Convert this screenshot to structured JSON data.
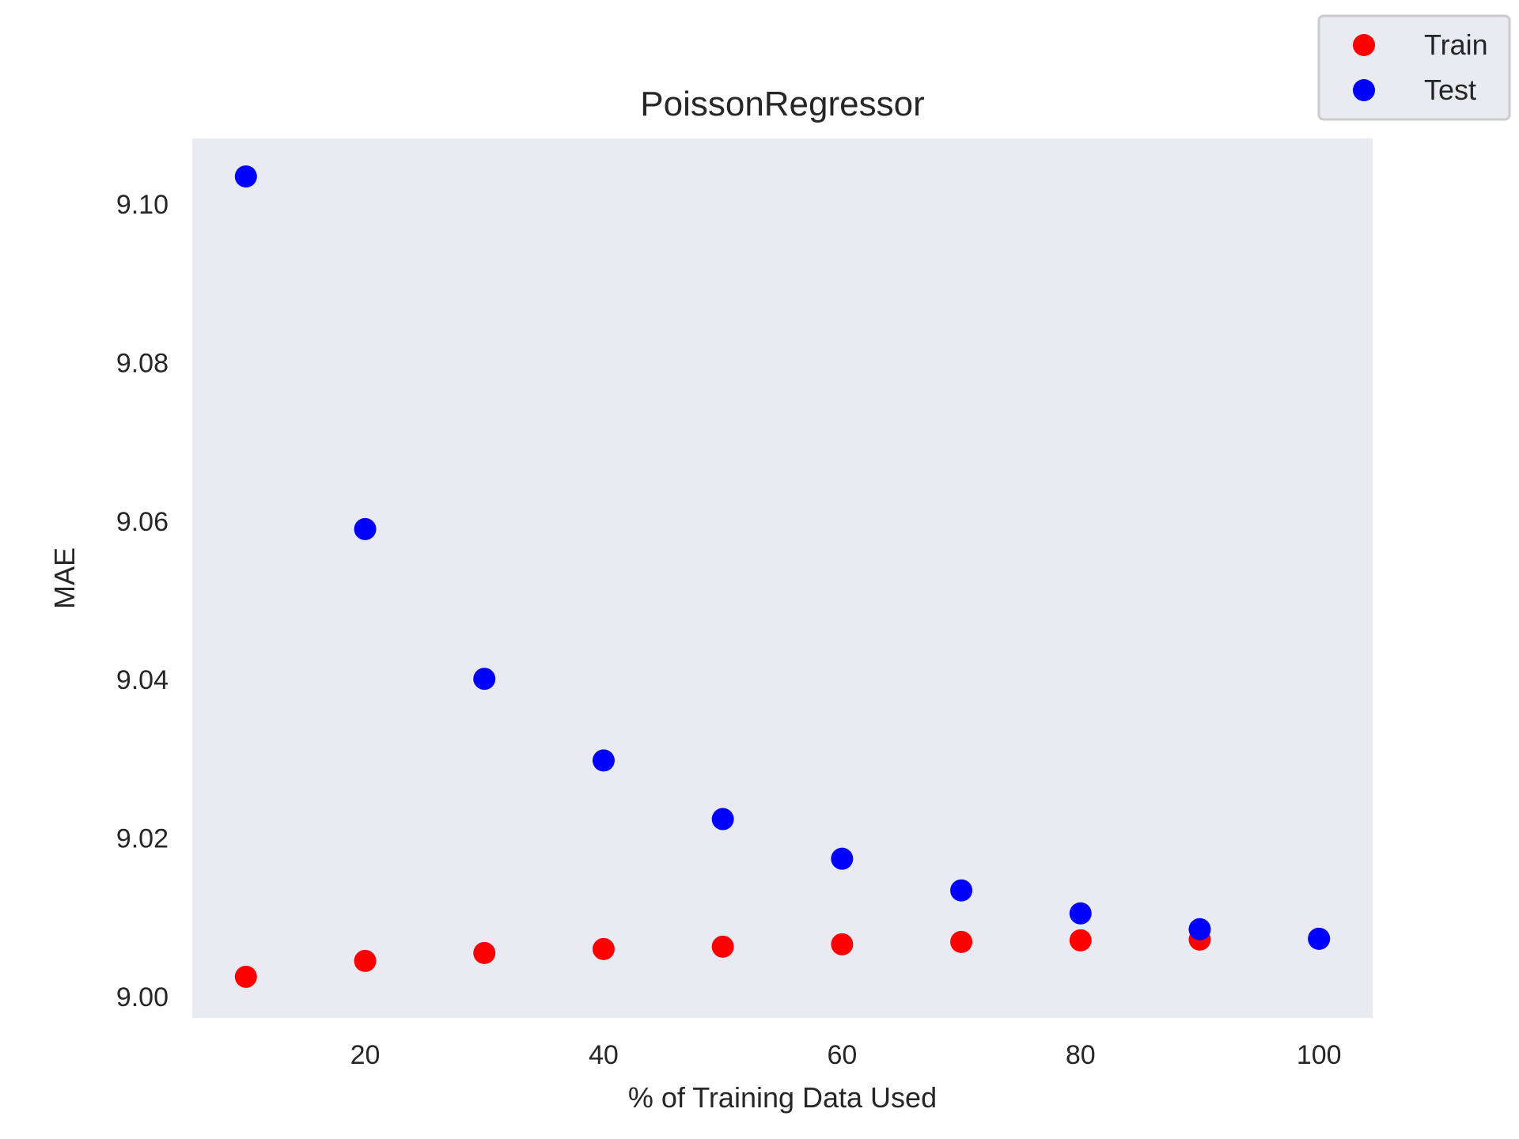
{
  "chart_data": {
    "type": "scatter",
    "title": "PoissonRegressor",
    "xlabel": "% of Training Data Used",
    "ylabel": "MAE",
    "x": [
      10,
      20,
      30,
      40,
      50,
      60,
      70,
      80,
      90,
      100
    ],
    "series": [
      {
        "name": "Train",
        "color": "#ff0000",
        "values": [
          9.0025,
          9.0045,
          9.0055,
          9.006,
          9.0063,
          9.0066,
          9.0069,
          9.0071,
          9.0072,
          9.0073
        ]
      },
      {
        "name": "Test",
        "color": "#0000ff",
        "values": [
          9.1035,
          9.059,
          9.0401,
          9.0298,
          9.0224,
          9.0174,
          9.0134,
          9.0105,
          9.0085,
          9.0073
        ]
      }
    ],
    "xlim": [
      5.5,
      104.5
    ],
    "ylim": [
      8.9973,
      9.1083
    ],
    "xticks": [
      20,
      40,
      60,
      80,
      100
    ],
    "xtick_labels": [
      "20",
      "40",
      "60",
      "80",
      "100"
    ],
    "yticks": [
      9.0,
      9.02,
      9.04,
      9.06,
      9.08,
      9.1
    ],
    "ytick_labels": [
      "9.00",
      "9.02",
      "9.04",
      "9.06",
      "9.08",
      "9.10"
    ],
    "grid": false,
    "legend_position": "top-right (outside plot)",
    "plot_background": "#eaeaf2"
  }
}
